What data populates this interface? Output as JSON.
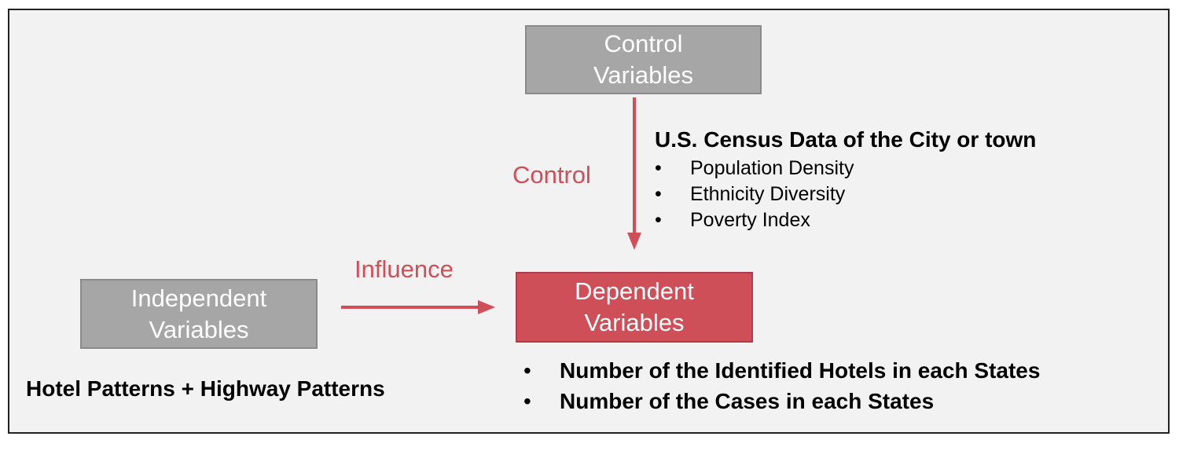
{
  "nodes": {
    "control": {
      "line1": "Control",
      "line2": "Variables"
    },
    "independent": {
      "line1": "Independent",
      "line2": "Variables"
    },
    "dependent": {
      "line1": "Dependent",
      "line2": "Variables"
    }
  },
  "edges": {
    "control_label": "Control",
    "influence_label": "Influence"
  },
  "census": {
    "title": "U.S. Census Data of the City or town",
    "bullet": "•",
    "items": [
      "Population Density",
      "Ethnicity Diversity",
      "Poverty Index"
    ]
  },
  "dependent_notes": {
    "bullet": "•",
    "items": [
      "Number of the Identified Hotels in each States",
      "Number of the Cases in each States"
    ]
  },
  "independent_note": "Hotel Patterns + Highway Patterns",
  "colors": {
    "accent_red": "#cf4f58",
    "box_gray": "#a6a6a6",
    "background": "#f2f2f2"
  }
}
